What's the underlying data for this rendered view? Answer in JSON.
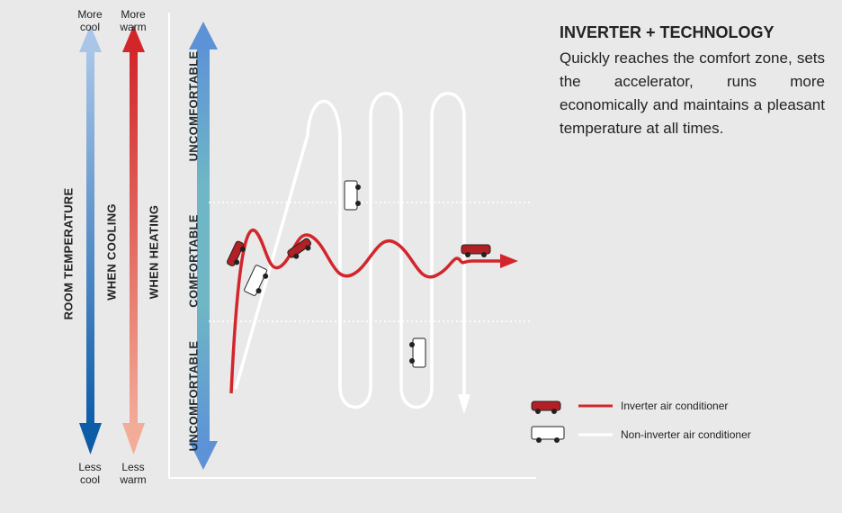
{
  "scale": {
    "cooling_top": "More cool",
    "heating_top": "More warm",
    "cooling_bottom": "Less cool",
    "heating_bottom": "Less warm"
  },
  "axis_labels": {
    "room": "ROOM TEMPERATURE",
    "cooling": "WHEN COOLING",
    "heating": "WHEN HEATING"
  },
  "zones": {
    "upper": "UNCOMFORTABLE",
    "middle": "COMFORTABLE",
    "lower": "UNCOMFORTABLE"
  },
  "header": {
    "title": "INVERTER + TECHNOLOGY",
    "body": "Quickly reaches the comfort zone, sets the accelerator, runs more economically and maintains a pleasant temperature at all times."
  },
  "legend": {
    "items": [
      {
        "label": "Inverter air conditioner"
      },
      {
        "label": "Non-inverter air conditioner"
      }
    ]
  }
}
